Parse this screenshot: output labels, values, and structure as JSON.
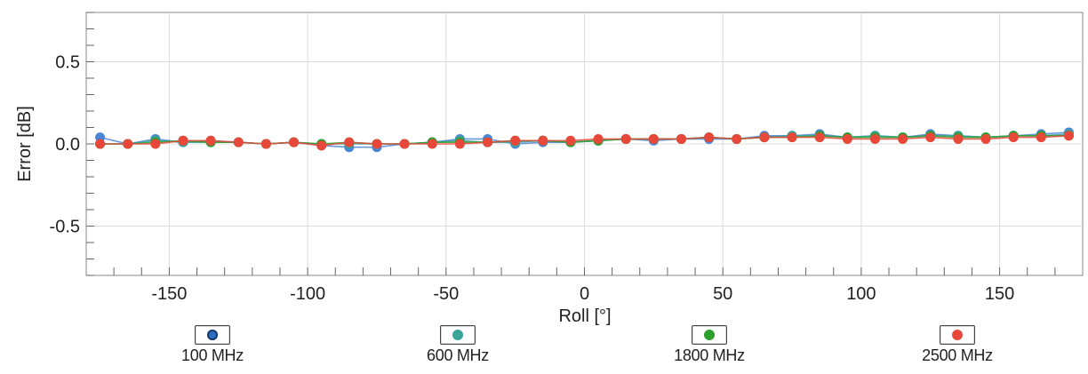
{
  "chart_data": {
    "type": "scatter",
    "title": "",
    "xlabel": "Roll [°]",
    "ylabel": "Error [dB]",
    "xlim": [
      -180,
      180
    ],
    "ylim": [
      -0.8,
      0.8
    ],
    "xticks": [
      -150,
      -100,
      -50,
      0,
      50,
      100,
      150
    ],
    "yticks": [
      -0.5,
      0.0,
      0.5
    ],
    "xtick_labels": [
      "-150",
      "-100",
      "-50",
      "0",
      "50",
      "100",
      "150"
    ],
    "ytick_labels": [
      "-0.5",
      "0.0",
      "0.5"
    ],
    "grid": true,
    "legend_position": "bottom",
    "x": [
      -175,
      -165,
      -155,
      -145,
      -135,
      -125,
      -115,
      -105,
      -95,
      -85,
      -75,
      -65,
      -55,
      -45,
      -35,
      -25,
      -15,
      -5,
      5,
      15,
      25,
      35,
      45,
      55,
      65,
      75,
      85,
      95,
      105,
      115,
      125,
      135,
      145,
      155,
      165,
      175
    ],
    "series": [
      {
        "name": "100 MHz",
        "color": "#4a86d8",
        "values": [
          0.04,
          0.0,
          0.03,
          0.01,
          0.02,
          0.01,
          0.0,
          0.01,
          -0.01,
          -0.02,
          -0.02,
          0.0,
          0.01,
          0.03,
          0.03,
          0.0,
          0.01,
          0.01,
          0.02,
          0.03,
          0.02,
          0.03,
          0.03,
          0.03,
          0.05,
          0.05,
          0.06,
          0.04,
          0.05,
          0.04,
          0.06,
          0.05,
          0.04,
          0.05,
          0.06,
          0.07
        ]
      },
      {
        "name": "600 MHz",
        "color": "#3aa39a",
        "values": [
          0.0,
          0.0,
          0.02,
          0.01,
          0.01,
          0.01,
          0.0,
          0.01,
          0.0,
          0.0,
          0.0,
          0.0,
          0.01,
          0.02,
          0.01,
          0.01,
          0.02,
          0.01,
          0.02,
          0.03,
          0.03,
          0.03,
          0.04,
          0.03,
          0.04,
          0.05,
          0.05,
          0.04,
          0.05,
          0.04,
          0.05,
          0.05,
          0.04,
          0.05,
          0.05,
          0.06
        ]
      },
      {
        "name": "1800 MHz",
        "color": "#2ca02c",
        "values": [
          0.0,
          0.0,
          0.01,
          0.02,
          0.01,
          0.01,
          0.0,
          0.01,
          0.0,
          0.01,
          0.0,
          0.0,
          0.01,
          0.01,
          0.01,
          0.02,
          0.02,
          0.01,
          0.02,
          0.03,
          0.03,
          0.03,
          0.04,
          0.03,
          0.04,
          0.04,
          0.05,
          0.04,
          0.04,
          0.04,
          0.05,
          0.04,
          0.04,
          0.05,
          0.05,
          0.05
        ]
      },
      {
        "name": "2500 MHz",
        "color": "#e8483a",
        "values": [
          0.0,
          0.0,
          0.0,
          0.02,
          0.02,
          0.01,
          0.0,
          0.01,
          -0.01,
          0.01,
          0.0,
          0.0,
          0.0,
          0.0,
          0.01,
          0.02,
          0.02,
          0.02,
          0.03,
          0.03,
          0.03,
          0.03,
          0.04,
          0.03,
          0.04,
          0.04,
          0.04,
          0.03,
          0.03,
          0.03,
          0.04,
          0.03,
          0.03,
          0.04,
          0.04,
          0.05
        ]
      }
    ]
  }
}
